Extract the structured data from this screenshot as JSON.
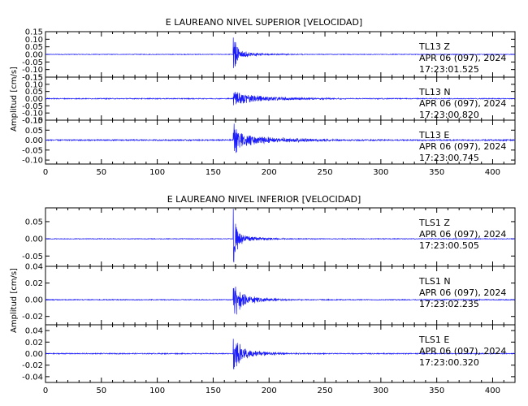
{
  "chart_data": [
    {
      "type": "line",
      "title": "E LAUREANO NIVEL SUPERIOR [VELOCIDAD]",
      "ylabel": "Amplitud [cm/s]",
      "xlim": [
        0,
        420
      ],
      "x_ticks": [
        "0",
        "50",
        "100",
        "150",
        "200",
        "250",
        "300",
        "350",
        "400"
      ],
      "grid": false,
      "series_color": "#1a1aff",
      "panels": [
        {
          "station": "TL13",
          "component": "Z",
          "date": "APR 06 (097), 2024",
          "time": "17:23:01.525",
          "ylim": [
            -0.15,
            0.15
          ],
          "y_ticks": [
            "0.15",
            "0.10",
            "0.05",
            "0.00",
            "-0.05",
            "-0.10",
            "-0.15"
          ],
          "onset": 168,
          "peak": 0.16,
          "coda": 0.025,
          "decay": 22,
          "noise": 0.002
        },
        {
          "station": "TL13",
          "component": "N",
          "date": "APR 06 (097), 2024",
          "time": "17:23:00.820",
          "ylim": [
            -0.15,
            0.15
          ],
          "y_ticks": [
            "0.15",
            "0.10",
            "0.05",
            "0.00",
            "-0.05",
            "-0.10",
            "-0.15"
          ],
          "onset": 168,
          "peak": 0.07,
          "coda": 0.04,
          "decay": 35,
          "noise": 0.003
        },
        {
          "station": "TL13",
          "component": "E",
          "date": "APR 06 (097), 2024",
          "time": "17:23:00.745",
          "ylim": [
            -0.12,
            0.1
          ],
          "y_ticks": [
            "0.10",
            "0.05",
            "0.00",
            "-0.05",
            "-0.10"
          ],
          "onset": 168,
          "peak": 0.11,
          "coda": 0.035,
          "decay": 40,
          "noise": 0.003
        }
      ]
    },
    {
      "type": "line",
      "title": "E LAUREANO NIVEL INFERIOR [VELOCIDAD]",
      "ylabel": "Amplitud [cm/s]",
      "xlim": [
        0,
        420
      ],
      "x_ticks": [
        "0",
        "50",
        "100",
        "150",
        "200",
        "250",
        "300",
        "350",
        "400"
      ],
      "grid": false,
      "series_color": "#1a1aff",
      "panels": [
        {
          "station": "TLS1",
          "component": "Z",
          "date": "APR 06 (097), 2024",
          "time": "17:23:00.505",
          "ylim": [
            -0.08,
            0.09
          ],
          "y_ticks": [
            "0.05",
            "0.00",
            "-0.05"
          ],
          "onset": 168,
          "peak": 0.09,
          "coda": 0.015,
          "decay": 20,
          "noise": 0.001
        },
        {
          "station": "TLS1",
          "component": "N",
          "date": "APR 06 (097), 2024",
          "time": "17:23:02.235",
          "ylim": [
            -0.03,
            0.04
          ],
          "y_ticks": [
            "0.04",
            "0.02",
            "0.00",
            "-0.02"
          ],
          "onset": 168,
          "peak": 0.03,
          "coda": 0.012,
          "decay": 18,
          "noise": 0.0005
        },
        {
          "station": "TLS1",
          "component": "E",
          "date": "APR 06 (097), 2024",
          "time": "17:23:00.320",
          "ylim": [
            -0.05,
            0.05
          ],
          "y_ticks": [
            "0.04",
            "0.02",
            "0.00",
            "-0.02",
            "-0.04"
          ],
          "onset": 168,
          "peak": 0.045,
          "coda": 0.015,
          "decay": 20,
          "noise": 0.0008
        }
      ]
    }
  ]
}
